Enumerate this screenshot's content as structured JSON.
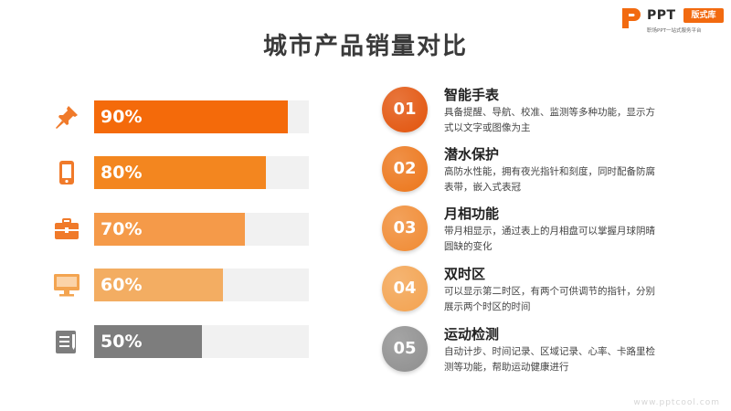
{
  "brand": {
    "name": "PPT",
    "badge": "版式库",
    "tagline": "职场PPT一站式服务平台",
    "accent": "#f26a10"
  },
  "title": "城市产品销量对比",
  "chart_data": {
    "type": "bar",
    "orientation": "horizontal",
    "categories": [
      "智能手表",
      "潜水保护",
      "月相功能",
      "双时区",
      "运动检测"
    ],
    "values": [
      90,
      80,
      70,
      60,
      50
    ],
    "value_labels": [
      "90%",
      "80%",
      "70%",
      "60%",
      "50%"
    ],
    "xlim": [
      0,
      100
    ],
    "icons": [
      "pushpin-icon",
      "tablet-icon",
      "briefcase-icon",
      "monitor-icon",
      "notepad-icon"
    ],
    "colors": [
      "#f46a0a",
      "#f3861f",
      "#f59a49",
      "#f3ad62",
      "#7d7d7d"
    ],
    "track_color": "#f1f1f1",
    "grid": false
  },
  "features": [
    {
      "number": "01",
      "title": "智能手表",
      "desc": "具备提醒、导航、校准、监测等多种功能，显示方式以文字或图像为主",
      "color": "#e2530b"
    },
    {
      "number": "02",
      "title": "潜水保护",
      "desc": "高防水性能，拥有夜光指针和刻度，同时配备防腐表带，嵌入式表冠",
      "color": "#ec7519"
    },
    {
      "number": "03",
      "title": "月相功能",
      "desc": "带月相显示，通过表上的月相盘可以掌握月球阴晴圆缺的变化",
      "color": "#f08a32"
    },
    {
      "number": "04",
      "title": "双时区",
      "desc": "可以显示第二时区，有两个可供调节的指针，分别展示两个时区的时间",
      "color": "#f3a24f"
    },
    {
      "number": "05",
      "title": "运动检测",
      "desc": "自动计步、时间记录、区域记录、心率、卡路里检测等功能，帮助运动健康进行",
      "color": "#8e8e8e"
    }
  ],
  "watermark": "www.pptcool.com"
}
